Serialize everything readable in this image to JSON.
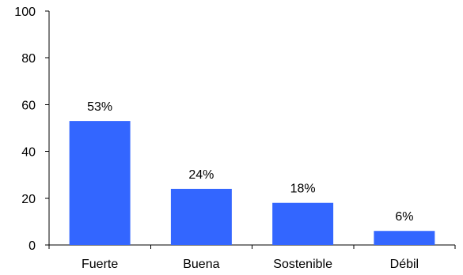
{
  "chart_data": {
    "type": "bar",
    "categories": [
      "Fuerte",
      "Buena",
      "Sostenible",
      "Débil"
    ],
    "values": [
      53,
      24,
      18,
      6
    ],
    "data_labels": [
      "53%",
      "24%",
      "18%",
      "6%"
    ],
    "title": "",
    "xlabel": "",
    "ylabel": "",
    "ylim": [
      0,
      100
    ],
    "yticks": [
      0,
      20,
      40,
      60,
      80,
      100
    ],
    "grid": false,
    "legend": "none",
    "bar_color": "#3366ff"
  }
}
